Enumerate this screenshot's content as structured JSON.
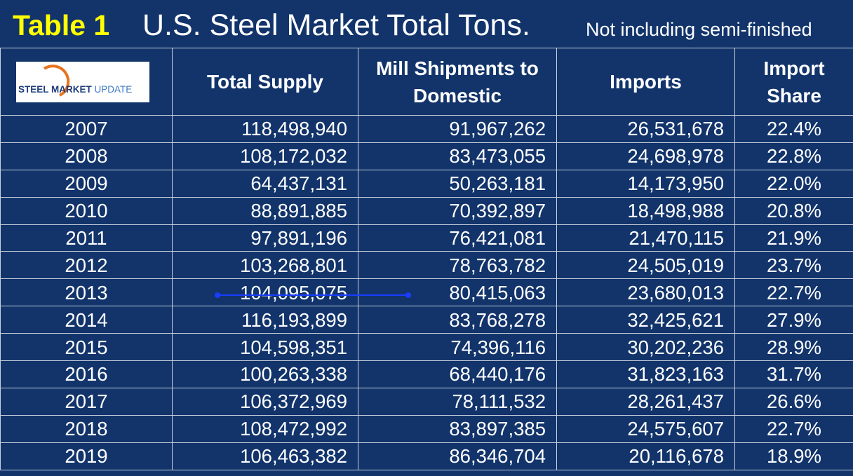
{
  "title": {
    "label": "Table 1",
    "main": "U.S. Steel Market Total Tons.",
    "note": "Not including semi-finished"
  },
  "logo": [
    "STEEL",
    "MARKET",
    "UPDATE"
  ],
  "table": {
    "headers": [
      "Total Supply",
      "Mill Shipments to Domestic",
      "Imports",
      "Import Share"
    ],
    "rows": [
      [
        "2007",
        "118,498,940",
        "91,967,262",
        "26,531,678",
        "22.4%"
      ],
      [
        "2008",
        "108,172,032",
        "83,473,055",
        "24,698,978",
        "22.8%"
      ],
      [
        "2009",
        "64,437,131",
        "50,263,181",
        "14,173,950",
        "22.0%"
      ],
      [
        "2010",
        "88,891,885",
        "70,392,897",
        "18,498,988",
        "20.8%"
      ],
      [
        "2011",
        "97,891,196",
        "76,421,081",
        "21,470,115",
        "21.9%"
      ],
      [
        "2012",
        "103,268,801",
        "78,763,782",
        "24,505,019",
        "23.7%"
      ],
      [
        "2013",
        "104,095,075",
        "80,415,063",
        "23,680,013",
        "22.7%"
      ],
      [
        "2014",
        "116,193,899",
        "83,768,278",
        "32,425,621",
        "27.9%"
      ],
      [
        "2015",
        "104,598,351",
        "74,396,116",
        "30,202,236",
        "28.9%"
      ],
      [
        "2016",
        "100,263,338",
        "68,440,176",
        "31,823,163",
        "31.7%"
      ],
      [
        "2017",
        "106,372,969",
        "78,111,532",
        "28,261,437",
        "26.6%"
      ],
      [
        "2018",
        "108,472,992",
        "83,897,385",
        "24,575,607",
        "22.7%"
      ],
      [
        "2019",
        "106,463,382",
        "86,346,704",
        "20,116,678",
        "18.9%"
      ]
    ]
  }
}
